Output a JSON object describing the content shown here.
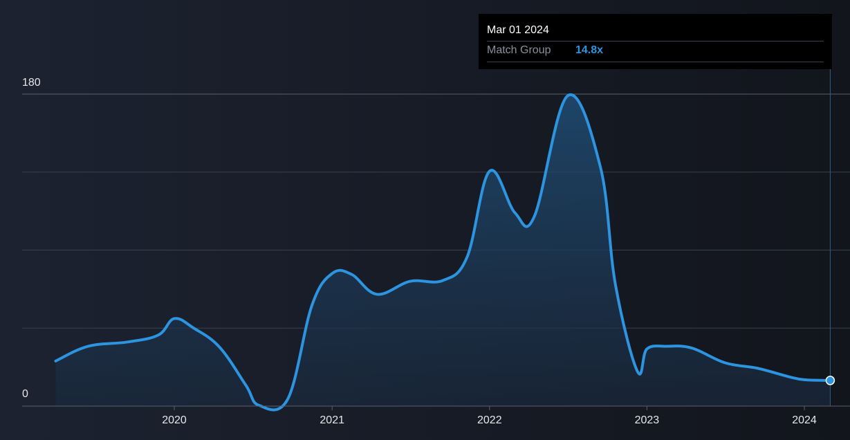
{
  "chart_data": {
    "type": "area",
    "ylim": [
      0,
      180
    ],
    "y_tick_labels": [
      "180",
      "0"
    ],
    "x_tick_labels": [
      "2020",
      "2021",
      "2022",
      "2023",
      "2024"
    ],
    "x_tick_dates": [
      "2020-01-01",
      "2021-01-01",
      "2022-01-01",
      "2023-01-01",
      "2024-01-01"
    ],
    "grid": true,
    "line_color": "#2d94e0",
    "series": [
      {
        "name": "Match Group",
        "x": [
          "2019-04-01",
          "2019-06-15",
          "2019-09-15",
          "2019-11-25",
          "2020-01-01",
          "2020-02-15",
          "2020-04-15",
          "2020-06-15",
          "2020-07-15",
          "2020-09-20",
          "2020-11-15",
          "2021-01-01",
          "2021-02-15",
          "2021-04-15",
          "2021-07-01",
          "2021-09-15",
          "2021-11-10",
          "2022-01-01",
          "2022-03-01",
          "2022-04-15",
          "2022-07-01",
          "2022-09-15",
          "2022-10-20",
          "2022-12-10",
          "2023-01-01",
          "2023-02-15",
          "2023-04-15",
          "2023-07-01",
          "2023-09-15",
          "2023-11-25",
          "2024-01-01",
          "2024-03-01"
        ],
        "values": [
          26,
          34.5,
          37,
          41,
          50.5,
          45,
          34,
          12,
          0.5,
          4,
          58,
          76.5,
          76,
          64.5,
          72,
          72.5,
          86,
          135.5,
          111.5,
          109.5,
          179,
          138,
          70,
          20,
          33,
          34.5,
          33.5,
          25,
          21.8,
          17,
          15.2,
          14.8
        ]
      }
    ],
    "tooltip": {
      "date": "Mar 01 2024",
      "series": "Match Group",
      "value": "14.8x"
    }
  }
}
